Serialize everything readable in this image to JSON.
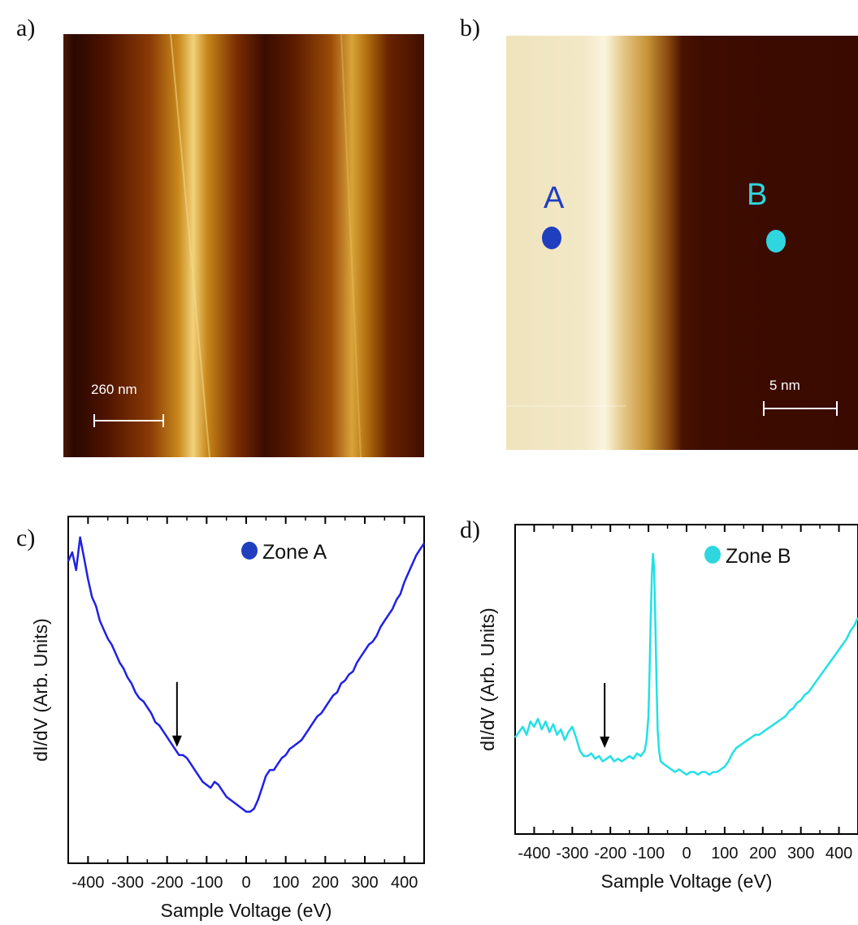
{
  "panels": {
    "a": {
      "label": "a)",
      "scalebar": "260 nm"
    },
    "b": {
      "label": "b)",
      "scalebar": "5 nm",
      "markers": [
        {
          "label": "A",
          "color": "#1f3fbf"
        },
        {
          "label": "B",
          "color": "#2fd6e0"
        }
      ]
    }
  },
  "chart_data": [
    {
      "panel_label": "c)",
      "type": "line",
      "xlabel": "Sample Voltage (eV)",
      "ylabel": "dI/dV (Arb. Units)",
      "xlim": [
        -450,
        450
      ],
      "ylim": [
        0,
        1
      ],
      "xticks": [
        -400,
        -300,
        -200,
        -100,
        0,
        100,
        200,
        300,
        400
      ],
      "xtick_labels": [
        "-400",
        "-300",
        "-200",
        "-100",
        "0",
        "100",
        "200",
        "300",
        "400"
      ],
      "legend": {
        "label": "Zone A",
        "position": "top-right"
      },
      "annotation": {
        "type": "arrow",
        "x": -175,
        "y": 0.27
      },
      "series": [
        {
          "name": "Zone A",
          "color": "#2020e6",
          "x": [
            -450,
            -440,
            -430,
            -420,
            -410,
            -400,
            -390,
            -380,
            -370,
            -360,
            -350,
            -340,
            -330,
            -320,
            -310,
            -300,
            -290,
            -280,
            -270,
            -260,
            -250,
            -240,
            -230,
            -220,
            -210,
            -200,
            -190,
            -180,
            -170,
            -160,
            -150,
            -140,
            -130,
            -120,
            -110,
            -100,
            -90,
            -80,
            -70,
            -60,
            -50,
            -40,
            -30,
            -20,
            -10,
            0,
            10,
            20,
            30,
            40,
            50,
            60,
            70,
            80,
            90,
            100,
            110,
            120,
            130,
            140,
            150,
            160,
            170,
            180,
            190,
            200,
            210,
            220,
            230,
            240,
            250,
            260,
            270,
            280,
            290,
            300,
            310,
            320,
            330,
            340,
            350,
            360,
            370,
            380,
            390,
            400,
            410,
            420,
            430,
            440,
            450
          ],
          "y": [
            0.92,
            0.95,
            0.89,
            1.0,
            0.93,
            0.86,
            0.8,
            0.77,
            0.72,
            0.69,
            0.66,
            0.64,
            0.61,
            0.58,
            0.56,
            0.53,
            0.51,
            0.48,
            0.46,
            0.45,
            0.43,
            0.41,
            0.38,
            0.37,
            0.35,
            0.33,
            0.31,
            0.29,
            0.27,
            0.27,
            0.26,
            0.24,
            0.22,
            0.2,
            0.18,
            0.17,
            0.16,
            0.18,
            0.17,
            0.15,
            0.13,
            0.12,
            0.11,
            0.1,
            0.09,
            0.08,
            0.08,
            0.09,
            0.12,
            0.16,
            0.2,
            0.22,
            0.22,
            0.24,
            0.26,
            0.27,
            0.29,
            0.3,
            0.31,
            0.32,
            0.34,
            0.36,
            0.38,
            0.4,
            0.41,
            0.43,
            0.45,
            0.47,
            0.48,
            0.51,
            0.52,
            0.54,
            0.55,
            0.58,
            0.6,
            0.62,
            0.64,
            0.65,
            0.67,
            0.7,
            0.72,
            0.74,
            0.76,
            0.79,
            0.81,
            0.85,
            0.88,
            0.91,
            0.94,
            0.96,
            0.98
          ]
        }
      ]
    },
    {
      "panel_label": "d)",
      "type": "line",
      "xlabel": "Sample Voltage (eV)",
      "ylabel": "dI/dV (Arb. Units)",
      "xlim": [
        -450,
        450
      ],
      "ylim": [
        0,
        1
      ],
      "xticks": [
        -400,
        -300,
        -200,
        -100,
        0,
        100,
        200,
        300,
        400
      ],
      "xtick_labels": [
        "-400",
        "-300",
        "-200",
        "-100",
        "0",
        "100",
        "200",
        "300",
        "400"
      ],
      "legend": {
        "label": "Zone B",
        "position": "top-right"
      },
      "annotation": {
        "type": "arrow",
        "x": -215,
        "y": 0.2
      },
      "series": [
        {
          "name": "Zone B",
          "color": "#22e0e6",
          "x": [
            -450,
            -440,
            -430,
            -420,
            -410,
            -400,
            -390,
            -380,
            -370,
            -360,
            -350,
            -340,
            -330,
            -320,
            -310,
            -300,
            -290,
            -280,
            -270,
            -260,
            -250,
            -240,
            -230,
            -220,
            -210,
            -200,
            -190,
            -180,
            -170,
            -160,
            -150,
            -140,
            -130,
            -120,
            -110,
            -105,
            -100,
            -97,
            -94,
            -91,
            -88,
            -85,
            -82,
            -79,
            -76,
            -72,
            -68,
            -60,
            -50,
            -40,
            -30,
            -20,
            -10,
            0,
            10,
            20,
            30,
            40,
            50,
            60,
            70,
            80,
            90,
            100,
            110,
            120,
            130,
            140,
            150,
            160,
            170,
            180,
            190,
            200,
            210,
            220,
            230,
            240,
            250,
            260,
            270,
            280,
            290,
            300,
            310,
            320,
            330,
            340,
            350,
            360,
            370,
            380,
            390,
            400,
            410,
            420,
            430,
            440,
            450
          ],
          "y": [
            0.27,
            0.29,
            0.31,
            0.28,
            0.33,
            0.31,
            0.34,
            0.3,
            0.33,
            0.29,
            0.32,
            0.28,
            0.3,
            0.26,
            0.29,
            0.31,
            0.27,
            0.22,
            0.2,
            0.2,
            0.21,
            0.19,
            0.2,
            0.18,
            0.19,
            0.2,
            0.18,
            0.19,
            0.18,
            0.19,
            0.2,
            0.19,
            0.21,
            0.2,
            0.22,
            0.26,
            0.35,
            0.52,
            0.72,
            0.88,
            0.96,
            0.9,
            0.7,
            0.48,
            0.3,
            0.22,
            0.18,
            0.17,
            0.16,
            0.15,
            0.14,
            0.15,
            0.14,
            0.13,
            0.14,
            0.14,
            0.13,
            0.14,
            0.14,
            0.13,
            0.14,
            0.14,
            0.15,
            0.16,
            0.18,
            0.21,
            0.23,
            0.24,
            0.25,
            0.26,
            0.27,
            0.28,
            0.28,
            0.29,
            0.3,
            0.31,
            0.32,
            0.33,
            0.34,
            0.35,
            0.37,
            0.38,
            0.4,
            0.41,
            0.43,
            0.44,
            0.46,
            0.48,
            0.5,
            0.52,
            0.54,
            0.56,
            0.58,
            0.6,
            0.62,
            0.64,
            0.67,
            0.69,
            0.72
          ]
        }
      ]
    }
  ]
}
